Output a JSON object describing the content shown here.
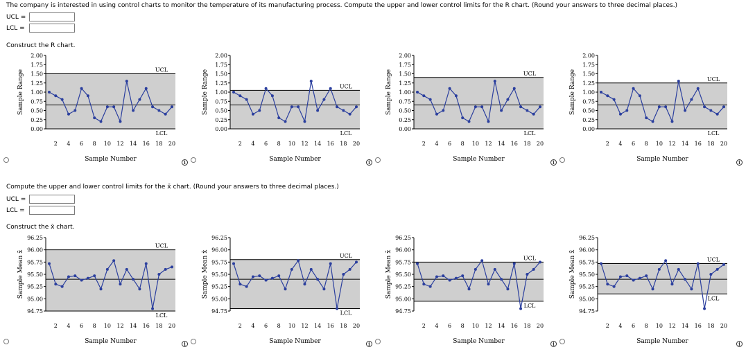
{
  "q1": {
    "prompt": "The company is interested in using control charts to monitor the temperature of its manufacturing process. Compute the upper and lower control limits for the R chart. (Round your answers to three decimal places.)",
    "ucl_label": "UCL =",
    "lcl_label": "LCL =",
    "ucl_value": "",
    "lcl_value": ""
  },
  "construct_r": "Construct the R chart.",
  "q2": {
    "prompt": "Compute the upper and lower control limits for the x̄ chart. (Round your answers to three decimal places.)",
    "ucl_label": "UCL =",
    "lcl_label": "LCL =",
    "ucl_value": "",
    "lcl_value": ""
  },
  "construct_x": "Construct the x̄ chart.",
  "colors": {
    "series": "#2b3f9e",
    "band": "#cfcfcf",
    "line": "#000000"
  },
  "icons": {
    "info": "info-icon",
    "radio": "radio-button"
  },
  "info_glyph": "i",
  "chart_data": [
    {
      "type": "line",
      "xlabel": "Sample Number",
      "ylabel": "Sample Range",
      "ylim": [
        0,
        2.0
      ],
      "yticks": [
        "0.00",
        "0.25",
        "0.50",
        "0.75",
        "1.00",
        "1.25",
        "1.50",
        "1.75",
        "2.00"
      ],
      "xticks": [
        "2",
        "4",
        "6",
        "8",
        "10",
        "12",
        "14",
        "16",
        "18",
        "20"
      ],
      "ucl": 1.5,
      "center": 0.65,
      "lcl": 0.0,
      "ucl_label": "UCL",
      "lcl_label": "LCL",
      "x": [
        1,
        2,
        3,
        4,
        5,
        6,
        7,
        8,
        9,
        10,
        11,
        12,
        13,
        14,
        15,
        16,
        17,
        18,
        19,
        20
      ],
      "values": [
        1.0,
        0.9,
        0.8,
        0.4,
        0.5,
        1.1,
        0.9,
        0.3,
        0.2,
        0.6,
        0.6,
        0.2,
        1.3,
        0.5,
        0.8,
        1.1,
        0.6,
        0.5,
        0.4,
        0.6
      ]
    },
    {
      "type": "line",
      "xlabel": "Sample Number",
      "ylabel": "Sample Range",
      "ylim": [
        0,
        2.0
      ],
      "yticks": [
        "0.00",
        "0.25",
        "0.50",
        "0.75",
        "1.00",
        "1.25",
        "1.50",
        "1.75",
        "2.00"
      ],
      "xticks": [
        "2",
        "4",
        "6",
        "8",
        "10",
        "12",
        "14",
        "16",
        "18",
        "20"
      ],
      "ucl": 1.05,
      "center": 0.65,
      "lcl": 0.0,
      "ucl_label": "UCL",
      "lcl_label": "LCL",
      "x": [
        1,
        2,
        3,
        4,
        5,
        6,
        7,
        8,
        9,
        10,
        11,
        12,
        13,
        14,
        15,
        16,
        17,
        18,
        19,
        20
      ],
      "values": [
        1.0,
        0.9,
        0.8,
        0.4,
        0.5,
        1.1,
        0.9,
        0.3,
        0.2,
        0.6,
        0.6,
        0.2,
        1.3,
        0.5,
        0.8,
        1.1,
        0.6,
        0.5,
        0.4,
        0.6
      ]
    },
    {
      "type": "line",
      "xlabel": "Sample Number",
      "ylabel": "Sample Range",
      "ylim": [
        0,
        2.0
      ],
      "yticks": [
        "0.00",
        "0.25",
        "0.50",
        "0.75",
        "1.00",
        "1.25",
        "1.50",
        "1.75",
        "2.00"
      ],
      "xticks": [
        "2",
        "4",
        "6",
        "8",
        "10",
        "12",
        "14",
        "16",
        "18",
        "20"
      ],
      "ucl": 1.4,
      "center": 0.65,
      "lcl": 0.0,
      "ucl_label": "UCL",
      "lcl_label": "LCL",
      "x": [
        1,
        2,
        3,
        4,
        5,
        6,
        7,
        8,
        9,
        10,
        11,
        12,
        13,
        14,
        15,
        16,
        17,
        18,
        19,
        20
      ],
      "values": [
        1.0,
        0.9,
        0.8,
        0.4,
        0.5,
        1.1,
        0.9,
        0.3,
        0.2,
        0.6,
        0.6,
        0.2,
        1.3,
        0.5,
        0.8,
        1.1,
        0.6,
        0.5,
        0.4,
        0.6
      ]
    },
    {
      "type": "line",
      "xlabel": "Sample Number",
      "ylabel": "Sample Range",
      "ylim": [
        0,
        2.0
      ],
      "yticks": [
        "0.00",
        "0.25",
        "0.50",
        "0.75",
        "1.00",
        "1.25",
        "1.50",
        "1.75",
        "2.00"
      ],
      "xticks": [
        "2",
        "4",
        "6",
        "8",
        "10",
        "12",
        "14",
        "16",
        "18",
        "20"
      ],
      "ucl": 1.25,
      "center": 0.65,
      "lcl": 0.0,
      "ucl_label": "UCL",
      "lcl_label": "LCL",
      "x": [
        1,
        2,
        3,
        4,
        5,
        6,
        7,
        8,
        9,
        10,
        11,
        12,
        13,
        14,
        15,
        16,
        17,
        18,
        19,
        20
      ],
      "values": [
        1.0,
        0.9,
        0.8,
        0.4,
        0.5,
        1.1,
        0.9,
        0.3,
        0.2,
        0.6,
        0.6,
        0.2,
        1.3,
        0.5,
        0.8,
        1.1,
        0.6,
        0.5,
        0.4,
        0.6
      ]
    },
    {
      "type": "line",
      "xlabel": "Sample Number",
      "ylabel": "Sample Mean x̄",
      "ylim": [
        94.75,
        96.25
      ],
      "yticks": [
        "94.75",
        "95.00",
        "95.25",
        "95.50",
        "95.75",
        "96.00",
        "96.25"
      ],
      "xticks": [
        "2",
        "4",
        "6",
        "8",
        "10",
        "12",
        "14",
        "16",
        "18",
        "20"
      ],
      "ucl": 96.0,
      "center": 95.4,
      "lcl": 94.75,
      "ucl_label": "UCL",
      "lcl_label": "LCL",
      "x": [
        1,
        2,
        3,
        4,
        5,
        6,
        7,
        8,
        9,
        10,
        11,
        12,
        13,
        14,
        15,
        16,
        17,
        18,
        19,
        20
      ],
      "values": [
        95.72,
        95.3,
        95.25,
        95.45,
        95.47,
        95.38,
        95.42,
        95.47,
        95.2,
        95.6,
        95.78,
        95.3,
        95.6,
        95.4,
        95.2,
        95.72,
        94.8,
        95.5,
        95.6,
        95.65
      ]
    },
    {
      "type": "line",
      "xlabel": "Sample Number",
      "ylabel": "Sample Mean x̄",
      "ylim": [
        94.75,
        96.25
      ],
      "yticks": [
        "94.75",
        "95.00",
        "95.25",
        "95.50",
        "95.75",
        "96.00",
        "96.25"
      ],
      "xticks": [
        "2",
        "4",
        "6",
        "8",
        "10",
        "12",
        "14",
        "16",
        "18",
        "20"
      ],
      "ucl": 95.8,
      "center": 95.4,
      "lcl": 94.8,
      "ucl_label": "UCL",
      "lcl_label": "LCL",
      "x": [
        1,
        2,
        3,
        4,
        5,
        6,
        7,
        8,
        9,
        10,
        11,
        12,
        13,
        14,
        15,
        16,
        17,
        18,
        19,
        20
      ],
      "values": [
        95.72,
        95.3,
        95.25,
        95.45,
        95.47,
        95.38,
        95.42,
        95.47,
        95.2,
        95.6,
        95.78,
        95.3,
        95.6,
        95.4,
        95.2,
        95.72,
        94.8,
        95.5,
        95.6,
        95.75
      ]
    },
    {
      "type": "line",
      "xlabel": "Sample Number",
      "ylabel": "Sample Mean x̄",
      "ylim": [
        94.75,
        96.25
      ],
      "yticks": [
        "94.75",
        "95.00",
        "95.25",
        "95.50",
        "95.75",
        "96.00",
        "96.25"
      ],
      "xticks": [
        "2",
        "4",
        "6",
        "8",
        "10",
        "12",
        "14",
        "16",
        "18",
        "20"
      ],
      "ucl": 95.75,
      "center": 95.4,
      "lcl": 94.95,
      "ucl_label": "UCL",
      "lcl_label": "LCL",
      "x": [
        1,
        2,
        3,
        4,
        5,
        6,
        7,
        8,
        9,
        10,
        11,
        12,
        13,
        14,
        15,
        16,
        17,
        18,
        19,
        20
      ],
      "values": [
        95.72,
        95.3,
        95.25,
        95.45,
        95.47,
        95.38,
        95.42,
        95.47,
        95.2,
        95.6,
        95.78,
        95.3,
        95.6,
        95.4,
        95.2,
        95.72,
        94.8,
        95.5,
        95.6,
        95.75
      ]
    },
    {
      "type": "line",
      "xlabel": "Sample Number",
      "ylabel": "Sample Mean x̄",
      "ylim": [
        94.75,
        96.25
      ],
      "yticks": [
        "94.75",
        "95.00",
        "95.25",
        "95.50",
        "95.75",
        "96.00",
        "96.25"
      ],
      "xticks": [
        "2",
        "4",
        "6",
        "8",
        "10",
        "12",
        "14",
        "16",
        "18",
        "20"
      ],
      "ucl": 95.72,
      "center": 95.4,
      "lcl": 95.1,
      "ucl_label": "UCL",
      "lcl_label": "LCL",
      "x": [
        1,
        2,
        3,
        4,
        5,
        6,
        7,
        8,
        9,
        10,
        11,
        12,
        13,
        14,
        15,
        16,
        17,
        18,
        19,
        20
      ],
      "values": [
        95.72,
        95.3,
        95.25,
        95.45,
        95.47,
        95.38,
        95.42,
        95.47,
        95.2,
        95.6,
        95.78,
        95.3,
        95.6,
        95.4,
        95.2,
        95.72,
        94.8,
        95.5,
        95.6,
        95.7
      ]
    }
  ]
}
